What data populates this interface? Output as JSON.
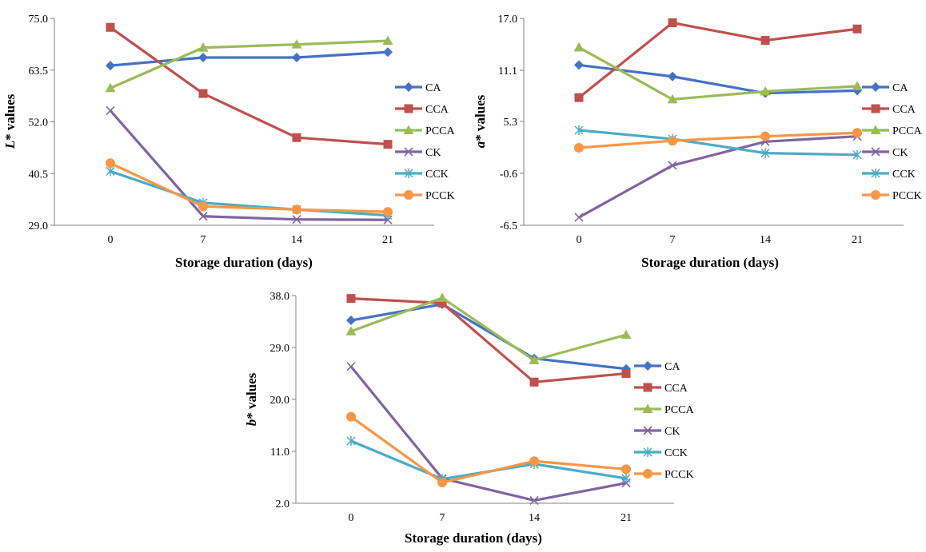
{
  "colors": {
    "CA": "#4472C4",
    "CCA": "#C0504D",
    "PCCA": "#9BBB59",
    "CK": "#8064A2",
    "CCK": "#4BACC6",
    "PCCK": "#F79646"
  },
  "legend_order": [
    "CA",
    "CCA",
    "PCCA",
    "CK",
    "CCK",
    "PCCK"
  ],
  "markers": {
    "CA": "diamond",
    "CCA": "square",
    "PCCA": "triangle",
    "CK": "x",
    "CCK": "star",
    "PCCK": "circle"
  },
  "chart_data": [
    {
      "type": "line",
      "xlabel": "Storage duration (days)",
      "ylabel_italic": "L",
      "ylabel_rest": "* values",
      "x": [
        0,
        7,
        14,
        21
      ],
      "x_tick_labels": [
        "0",
        "7",
        "14",
        "21"
      ],
      "ylim": [
        29.0,
        75.0
      ],
      "y_ticks": [
        29.0,
        40.5,
        52.0,
        63.5,
        75.0
      ],
      "y_tick_labels": [
        "29.0",
        "40.5",
        "52.0",
        "63.5",
        "75.0"
      ],
      "grid": false,
      "legend": "right",
      "series": [
        {
          "name": "CA",
          "values": [
            64.5,
            66.3,
            66.3,
            67.5
          ]
        },
        {
          "name": "CCA",
          "values": [
            73.0,
            58.3,
            48.5,
            47.0
          ]
        },
        {
          "name": "PCCA",
          "values": [
            59.5,
            68.5,
            69.2,
            70.0
          ]
        },
        {
          "name": "CK",
          "values": [
            54.5,
            31.0,
            30.3,
            30.2
          ]
        },
        {
          "name": "CCK",
          "values": [
            41.0,
            34.0,
            32.5,
            31.2
          ]
        },
        {
          "name": "PCCK",
          "values": [
            42.8,
            33.2,
            32.5,
            32.0
          ]
        }
      ]
    },
    {
      "type": "line",
      "xlabel": "Storage duration (days)",
      "ylabel_italic": "a",
      "ylabel_rest": "* values",
      "x": [
        0,
        7,
        14,
        21
      ],
      "x_tick_labels": [
        "0",
        "7",
        "14",
        "21"
      ],
      "ylim": [
        -6.5,
        17.0
      ],
      "y_ticks": [
        -6.5,
        -0.6,
        5.3,
        11.1,
        17.0
      ],
      "y_tick_labels": [
        "-6.5",
        "-0.6",
        "5.3",
        "11.1",
        "17.0"
      ],
      "grid": false,
      "legend": "right",
      "series": [
        {
          "name": "CA",
          "values": [
            11.7,
            10.4,
            8.5,
            8.8
          ]
        },
        {
          "name": "CCA",
          "values": [
            8.0,
            16.5,
            14.5,
            15.8
          ]
        },
        {
          "name": "PCCA",
          "values": [
            13.7,
            7.8,
            8.7,
            9.3
          ]
        },
        {
          "name": "CK",
          "values": [
            -5.6,
            0.3,
            3.0,
            3.6
          ]
        },
        {
          "name": "CCK",
          "values": [
            4.3,
            3.3,
            1.7,
            1.5
          ]
        },
        {
          "name": "PCCK",
          "values": [
            2.3,
            3.1,
            3.6,
            4.0
          ]
        }
      ]
    },
    {
      "type": "line",
      "xlabel": "Storage duration (days)",
      "ylabel_italic": "b",
      "ylabel_rest": "* values",
      "x": [
        0,
        7,
        14,
        21
      ],
      "x_tick_labels": [
        "0",
        "7",
        "14",
        "21"
      ],
      "ylim": [
        2.0,
        38.0
      ],
      "y_ticks": [
        2.0,
        11.0,
        20.0,
        29.0,
        38.0
      ],
      "y_tick_labels": [
        "2.0",
        "11.0",
        "20.0",
        "29.0",
        "38.0"
      ],
      "grid": false,
      "legend": "right",
      "series": [
        {
          "name": "CA",
          "values": [
            33.7,
            36.5,
            27.1,
            25.3
          ]
        },
        {
          "name": "CCA",
          "values": [
            37.5,
            36.7,
            23.0,
            24.5
          ]
        },
        {
          "name": "PCCA",
          "values": [
            31.8,
            37.6,
            26.8,
            31.2
          ]
        },
        {
          "name": "CK",
          "values": [
            25.7,
            6.3,
            2.5,
            5.5
          ]
        },
        {
          "name": "CCK",
          "values": [
            12.8,
            6.2,
            8.8,
            6.3
          ]
        },
        {
          "name": "PCCK",
          "values": [
            17.0,
            5.6,
            9.3,
            7.9
          ]
        }
      ]
    }
  ]
}
